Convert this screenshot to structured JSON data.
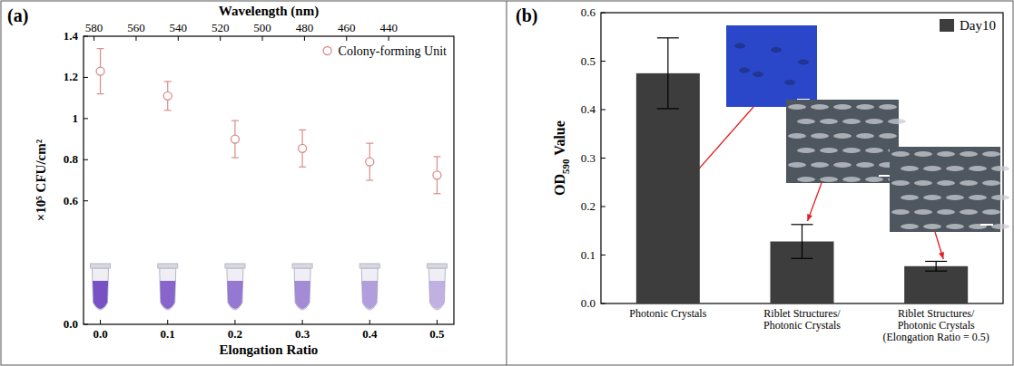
{
  "chart_data": [
    {
      "type": "scatter",
      "panel_label": "(a)",
      "x_label": "Elongation Ratio",
      "y_label": "×10⁵ CFU/cm²",
      "x2_label": "Wavelength (nm)",
      "xlim": [
        -0.025,
        0.525
      ],
      "xticks": [
        {
          "value": 0,
          "label": "0.0"
        },
        0.1,
        0.2,
        0.3,
        0.4,
        0.5
      ],
      "x2lim": [
        585,
        409
      ],
      "x2ticks": [
        580,
        560,
        540,
        520,
        500,
        480,
        460,
        440
      ],
      "ylim": [
        0,
        1.4
      ],
      "yticks": [
        {
          "value": 0,
          "label": "0.0"
        },
        0.6,
        0.8,
        1,
        1.2,
        1.4
      ],
      "legend": "upper right",
      "marker": "circle",
      "series": [
        {
          "name": "Colony-forming Unit",
          "color": "#d98c8c",
          "x": [
            0,
            0.1,
            0.2,
            0.3,
            0.4,
            0.5
          ],
          "values": [
            1.23,
            1.11,
            0.9,
            0.855,
            0.79,
            0.725
          ],
          "errors": [
            0.11,
            0.07,
            0.09,
            0.09,
            0.09,
            0.09
          ]
        }
      ]
    },
    {
      "type": "bar",
      "panel_label": "(b)",
      "y_label": "OD590 Value",
      "categories": [
        "Photonic Crystals",
        "Riblet Structures/\nPhotonic Crystals",
        "Riblet Structures/\nPhotonic Crystals\n(Elongation Ratio = 0.5)"
      ],
      "ylim": [
        0,
        0.6
      ],
      "yticks": [
        {
          "value": 0,
          "label": "0.0"
        },
        0.1,
        0.2,
        0.3,
        0.4,
        0.5,
        0.6
      ],
      "legend": "upper right",
      "series": [
        {
          "name": "Day10",
          "color": "#3d3d3d",
          "values": [
            0.475,
            0.128,
            0.077
          ],
          "errors": [
            0.073,
            0.035,
            0.01
          ]
        }
      ]
    }
  ]
}
